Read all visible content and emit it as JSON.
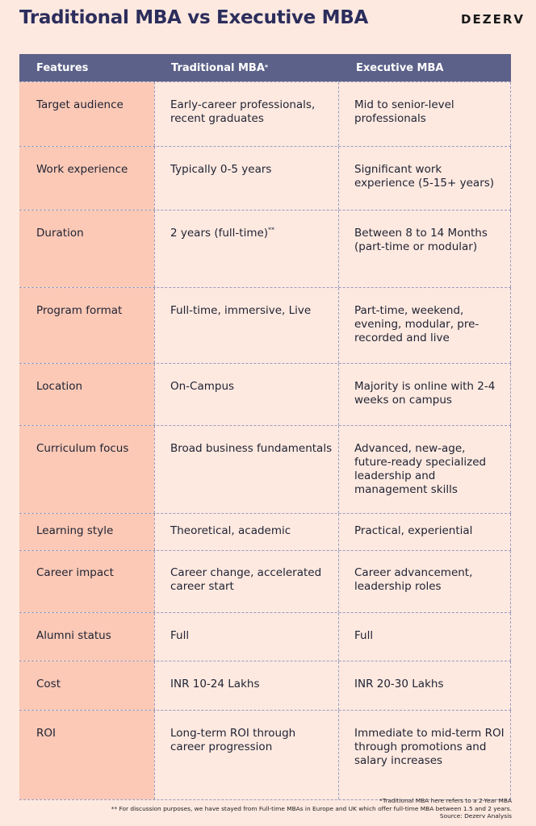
{
  "header": {
    "title": "Traditional MBA vs Executive MBA",
    "brand": "DEZERV"
  },
  "table": {
    "columns": {
      "features": "Features",
      "traditional": "Traditional MBA",
      "traditional_mark": "*",
      "executive": "Executive MBA"
    },
    "rows": [
      {
        "feature": "Target audience",
        "traditional": "Early-career professionals, recent graduates",
        "executive": "Mid to senior-level professionals"
      },
      {
        "feature": "Work experience",
        "traditional": "Typically 0-5 years",
        "executive": "Significant work experience (5-15+ years)"
      },
      {
        "feature": "Duration",
        "traditional": "2 years (full-time)",
        "traditional_mark": "**",
        "executive": "Between 8 to 14 Months (part-time or modular)"
      },
      {
        "feature": "Program format",
        "traditional": "Full-time, immersive, Live",
        "executive": "Part-time, weekend, evening, modular, pre-recorded and live"
      },
      {
        "feature": "Location",
        "traditional": "On-Campus",
        "executive": "Majority is online with 2-4 weeks on campus"
      },
      {
        "feature": "Curriculum focus",
        "traditional": "Broad business fundamentals",
        "executive": "Advanced, new-age, future-ready specialized leadership and management skills"
      },
      {
        "feature": "Learning style",
        "traditional": "Theoretical, academic",
        "executive": "Practical, experiential"
      },
      {
        "feature": "Career impact",
        "traditional": "Career change, accelerated career start",
        "executive": "Career advancement, leadership roles"
      },
      {
        "feature": "Alumni status",
        "traditional": "Full",
        "executive": "Full"
      },
      {
        "feature": "Cost",
        "traditional": "INR 10-24 Lakhs",
        "executive": "INR 20-30 Lakhs"
      },
      {
        "feature": "ROI",
        "traditional": "Long-term ROI through career progression",
        "executive": "Immediate to mid-term ROI through promotions and salary increases"
      }
    ]
  },
  "footnotes": {
    "note1": "*Traditional MBA here refers to a 2-Year MBA",
    "note2": "** For discussion purposes, we have stayed from Full-time MBAs in Europe and UK which offer full-time MBA between 1.5 and 2 years.",
    "source": "Source: Dezerv Analysis"
  }
}
